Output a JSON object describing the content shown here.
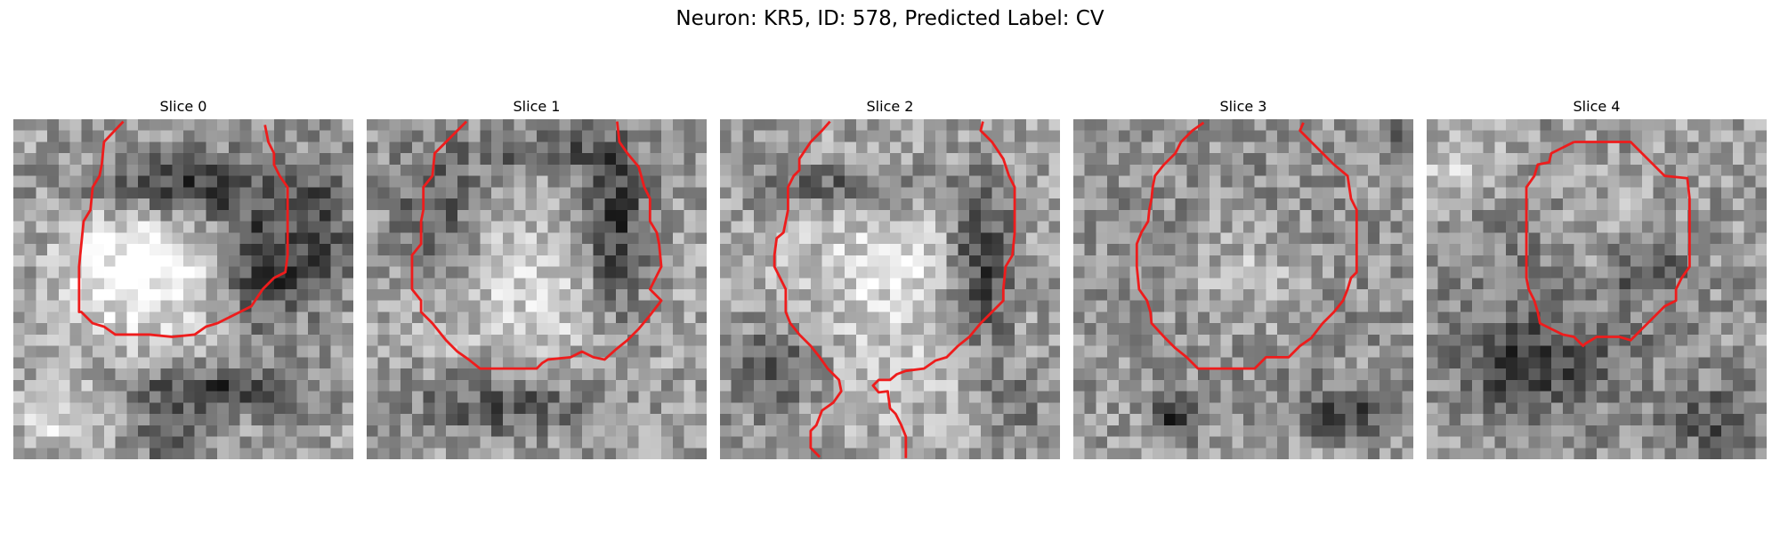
{
  "figure": {
    "title": "Neuron: KR5, ID: 578, Predicted Label: CV",
    "grid_size": 30,
    "contour_color": "#ee1c1c",
    "colormap": "gray",
    "panels": [
      {
        "title": "Slice 0",
        "seed": 11,
        "blobs": [
          {
            "cx": 15,
            "cy": 6,
            "rx": 8,
            "ry": 3,
            "amp": -0.45
          },
          {
            "cx": 11,
            "cy": 13,
            "rx": 6,
            "ry": 6,
            "amp": 0.45
          },
          {
            "cx": 22,
            "cy": 13,
            "rx": 3,
            "ry": 5,
            "amp": -0.45
          },
          {
            "cx": 18,
            "cy": 24,
            "rx": 8,
            "ry": 2,
            "amp": -0.4
          },
          {
            "cx": 27,
            "cy": 10,
            "rx": 3,
            "ry": 6,
            "amp": -0.3
          },
          {
            "cx": 4,
            "cy": 26,
            "rx": 4,
            "ry": 3,
            "amp": 0.25
          },
          {
            "cx": 14,
            "cy": 28,
            "rx": 3,
            "ry": 2,
            "amp": -0.3
          }
        ],
        "contours": [
          [
            [
              9.7,
              0.2
            ],
            [
              8,
              2
            ],
            [
              7.8,
              4
            ],
            [
              7.6,
              5
            ],
            [
              7,
              6
            ],
            [
              6.8,
              8
            ],
            [
              6.2,
              9
            ],
            [
              6,
              11
            ],
            [
              5.8,
              13
            ],
            [
              5.8,
              15
            ],
            [
              5.8,
              17
            ],
            [
              6,
              17
            ],
            [
              7,
              18
            ],
            [
              8,
              18.3
            ],
            [
              9,
              19
            ],
            [
              12,
              19
            ],
            [
              14,
              19.2
            ],
            [
              16,
              19
            ],
            [
              17,
              18.3
            ],
            [
              18,
              18
            ],
            [
              19,
              17.5
            ],
            [
              20,
              17
            ],
            [
              21,
              16.5
            ],
            [
              22,
              15
            ],
            [
              23,
              14
            ],
            [
              24,
              13.5
            ],
            [
              24.2,
              12
            ],
            [
              24.2,
              10
            ],
            [
              24.2,
              8
            ],
            [
              24.2,
              6
            ],
            [
              23.5,
              5
            ],
            [
              23,
              4
            ],
            [
              23,
              3
            ],
            [
              22.5,
              2
            ],
            [
              22.2,
              0.5
            ]
          ]
        ]
      },
      {
        "title": "Slice 1",
        "seed": 23,
        "blobs": [
          {
            "cx": 15,
            "cy": 15,
            "rx": 10,
            "ry": 8,
            "amp": 0.2
          },
          {
            "cx": 22,
            "cy": 10,
            "rx": 3,
            "ry": 8,
            "amp": -0.45
          },
          {
            "cx": 6,
            "cy": 8,
            "rx": 4,
            "ry": 6,
            "amp": -0.3
          },
          {
            "cx": 12,
            "cy": 25,
            "rx": 8,
            "ry": 3,
            "amp": -0.3
          },
          {
            "cx": 16,
            "cy": 3,
            "rx": 6,
            "ry": 2,
            "amp": -0.3
          }
        ],
        "contours": [
          [
            [
              8.8,
              0.2
            ],
            [
              7,
              2
            ],
            [
              6,
              3
            ],
            [
              5.8,
              5
            ],
            [
              5,
              6
            ],
            [
              5,
              8
            ],
            [
              4.8,
              9
            ],
            [
              4.8,
              11
            ],
            [
              4,
              12
            ],
            [
              4,
              15
            ],
            [
              4.8,
              16
            ],
            [
              4.8,
              17
            ],
            [
              5.8,
              18
            ],
            [
              7,
              19.5
            ],
            [
              8,
              20.5
            ],
            [
              9,
              21.2
            ],
            [
              10,
              22
            ],
            [
              13,
              22
            ],
            [
              15,
              22
            ],
            [
              15.5,
              21.5
            ],
            [
              16,
              21.2
            ],
            [
              18,
              21
            ],
            [
              19,
              20.5
            ],
            [
              20,
              21
            ],
            [
              21,
              21.2
            ],
            [
              22,
              20.3
            ],
            [
              23,
              19.5
            ],
            [
              24,
              18.5
            ],
            [
              25,
              17.3
            ],
            [
              26,
              16
            ],
            [
              25,
              15
            ],
            [
              25.5,
              14
            ],
            [
              26,
              13
            ],
            [
              25.8,
              11
            ],
            [
              25.6,
              10
            ],
            [
              25,
              9
            ],
            [
              25,
              7
            ],
            [
              24.5,
              6
            ],
            [
              24,
              4.2
            ],
            [
              23,
              3
            ],
            [
              22.3,
              2
            ],
            [
              22.1,
              0.2
            ]
          ]
        ]
      },
      {
        "title": "Slice 2",
        "seed": 37,
        "blobs": [
          {
            "cx": 15,
            "cy": 14,
            "rx": 9,
            "ry": 8,
            "amp": 0.25
          },
          {
            "cx": 23,
            "cy": 13,
            "rx": 3,
            "ry": 7,
            "amp": -0.45
          },
          {
            "cx": 11,
            "cy": 6,
            "rx": 7,
            "ry": 2,
            "amp": -0.3
          },
          {
            "cx": 5,
            "cy": 22,
            "rx": 4,
            "ry": 4,
            "amp": -0.3
          },
          {
            "cx": 15,
            "cy": 25,
            "rx": 9,
            "ry": 3,
            "amp": 0.1
          },
          {
            "cx": 26,
            "cy": 25,
            "rx": 3,
            "ry": 3,
            "amp": -0.2
          }
        ],
        "contours": [
          [
            [
              9.7,
              0.2
            ],
            [
              9,
              1
            ],
            [
              8,
              2
            ],
            [
              7,
              3.5
            ],
            [
              7,
              4.5
            ],
            [
              6.5,
              5
            ],
            [
              6,
              6
            ],
            [
              6,
              8
            ],
            [
              5.8,
              9
            ],
            [
              5.6,
              10
            ],
            [
              5,
              10.5
            ],
            [
              4.8,
              12
            ],
            [
              4.8,
              13
            ],
            [
              5.3,
              14
            ],
            [
              5.8,
              15
            ],
            [
              5.8,
              17
            ],
            [
              6.2,
              18
            ],
            [
              7,
              19
            ],
            [
              8,
              20
            ],
            [
              8.8,
              21
            ],
            [
              9.5,
              22
            ],
            [
              10.5,
              23
            ],
            [
              10.7,
              24
            ],
            [
              10,
              25
            ],
            [
              9,
              25.7
            ],
            [
              8.5,
              27
            ],
            [
              8,
              27.5
            ],
            [
              8,
              29
            ],
            [
              8.8,
              29.8
            ]
          ],
          [
            [
              16.4,
              29.9
            ],
            [
              16.4,
              28
            ],
            [
              16,
              27
            ],
            [
              15.5,
              26
            ],
            [
              15,
              25.5
            ],
            [
              14.8,
              24
            ],
            [
              14,
              24.1
            ],
            [
              13.5,
              23.5
            ],
            [
              14,
              23
            ],
            [
              15,
              23
            ],
            [
              15.6,
              22.5
            ],
            [
              16.4,
              22.2
            ],
            [
              18,
              22
            ],
            [
              19,
              21.3
            ],
            [
              20,
              21
            ],
            [
              21,
              20
            ],
            [
              22,
              19.2
            ],
            [
              23,
              18
            ],
            [
              24,
              17
            ],
            [
              25,
              16
            ],
            [
              25,
              15
            ],
            [
              25.2,
              13
            ],
            [
              25.8,
              12
            ],
            [
              26,
              10
            ],
            [
              26,
              8
            ],
            [
              26,
              6
            ],
            [
              25.5,
              5
            ],
            [
              25,
              3.5
            ],
            [
              24,
              2
            ],
            [
              23,
              1
            ],
            [
              23.2,
              0.2
            ]
          ]
        ]
      },
      {
        "title": "Slice 3",
        "seed": 53,
        "blobs": [
          {
            "cx": 15,
            "cy": 14,
            "rx": 10,
            "ry": 9,
            "amp": -0.45
          },
          {
            "cx": 15,
            "cy": 14,
            "rx": 8,
            "ry": 7,
            "amp": 0.55
          },
          {
            "cx": 9,
            "cy": 26,
            "rx": 2,
            "ry": 2,
            "amp": -0.4
          },
          {
            "cx": 24,
            "cy": 26,
            "rx": 4,
            "ry": 2,
            "amp": -0.35
          },
          {
            "cx": 29,
            "cy": 1,
            "rx": 1,
            "ry": 2,
            "amp": -0.3
          }
        ],
        "contours": [
          [
            [
              11.5,
              0.3
            ],
            [
              10.5,
              1
            ],
            [
              10,
              1.5
            ],
            [
              9.5,
              2
            ],
            [
              9,
              3
            ],
            [
              8,
              4
            ],
            [
              7.2,
              5
            ],
            [
              7,
              6
            ],
            [
              6.9,
              7
            ],
            [
              6.7,
              8
            ],
            [
              6.6,
              9
            ],
            [
              6,
              10
            ],
            [
              5.6,
              11
            ],
            [
              5.6,
              13
            ],
            [
              5.8,
              15
            ],
            [
              6.5,
              16
            ],
            [
              6.8,
              17
            ],
            [
              6.9,
              18
            ],
            [
              8,
              19.2
            ],
            [
              9,
              20.2
            ],
            [
              10,
              21
            ],
            [
              11,
              22
            ],
            [
              13,
              22
            ],
            [
              16,
              22
            ],
            [
              16.5,
              21.5
            ],
            [
              17,
              21
            ],
            [
              19,
              21
            ],
            [
              19.5,
              20.5
            ],
            [
              20,
              20
            ],
            [
              21,
              19.3
            ],
            [
              22,
              18
            ],
            [
              23,
              17
            ],
            [
              23.8,
              16
            ],
            [
              24.2,
              15
            ],
            [
              24.5,
              14
            ],
            [
              25,
              13.5
            ],
            [
              25,
              12
            ],
            [
              25,
              10
            ],
            [
              25,
              8
            ],
            [
              24.5,
              7
            ],
            [
              24.2,
              5
            ],
            [
              23,
              4
            ],
            [
              22,
              3
            ],
            [
              21,
              2
            ],
            [
              20,
              1
            ],
            [
              20.3,
              0.3
            ]
          ]
        ]
      },
      {
        "title": "Slice 4",
        "seed": 71,
        "blobs": [
          {
            "cx": 13,
            "cy": 16,
            "rx": 10,
            "ry": 10,
            "amp": -0.25
          },
          {
            "cx": 16,
            "cy": 12,
            "rx": 6,
            "ry": 6,
            "amp": 0.3
          },
          {
            "cx": 19,
            "cy": 13,
            "rx": 4,
            "ry": 3,
            "amp": -0.35
          },
          {
            "cx": 8,
            "cy": 22,
            "rx": 6,
            "ry": 3,
            "amp": -0.3
          },
          {
            "cx": 26,
            "cy": 27,
            "rx": 4,
            "ry": 3,
            "amp": -0.3
          },
          {
            "cx": 3,
            "cy": 4,
            "rx": 4,
            "ry": 3,
            "amp": 0.25
          }
        ],
        "contours": [
          [
            [
              13,
              2
            ],
            [
              17,
              2
            ],
            [
              18,
              2
            ],
            [
              19,
              3
            ],
            [
              20,
              4
            ],
            [
              21,
              5
            ],
            [
              23,
              5.2
            ],
            [
              23.2,
              7
            ],
            [
              23.2,
              9
            ],
            [
              23.2,
              11
            ],
            [
              23.2,
              13
            ],
            [
              22.5,
              14
            ],
            [
              22,
              15
            ],
            [
              22,
              16
            ],
            [
              21,
              16.5
            ],
            [
              20,
              17.5
            ],
            [
              19,
              18.5
            ],
            [
              18,
              19.5
            ],
            [
              17,
              19.2
            ],
            [
              15,
              19.2
            ],
            [
              14,
              19.8
            ],
            [
              13.8,
              20
            ],
            [
              13,
              19.2
            ],
            [
              12,
              19
            ],
            [
              11,
              18.5
            ],
            [
              10,
              18
            ],
            [
              9.8,
              17
            ],
            [
              9.5,
              16
            ],
            [
              9,
              15
            ],
            [
              8.8,
              14
            ],
            [
              8.8,
              12
            ],
            [
              8.8,
              10
            ],
            [
              8.8,
              8
            ],
            [
              8.8,
              6
            ],
            [
              9.5,
              5
            ],
            [
              9.8,
              4
            ],
            [
              10.8,
              3.8
            ],
            [
              11,
              3
            ],
            [
              12,
              2.5
            ],
            [
              13,
              2
            ]
          ]
        ]
      }
    ]
  }
}
